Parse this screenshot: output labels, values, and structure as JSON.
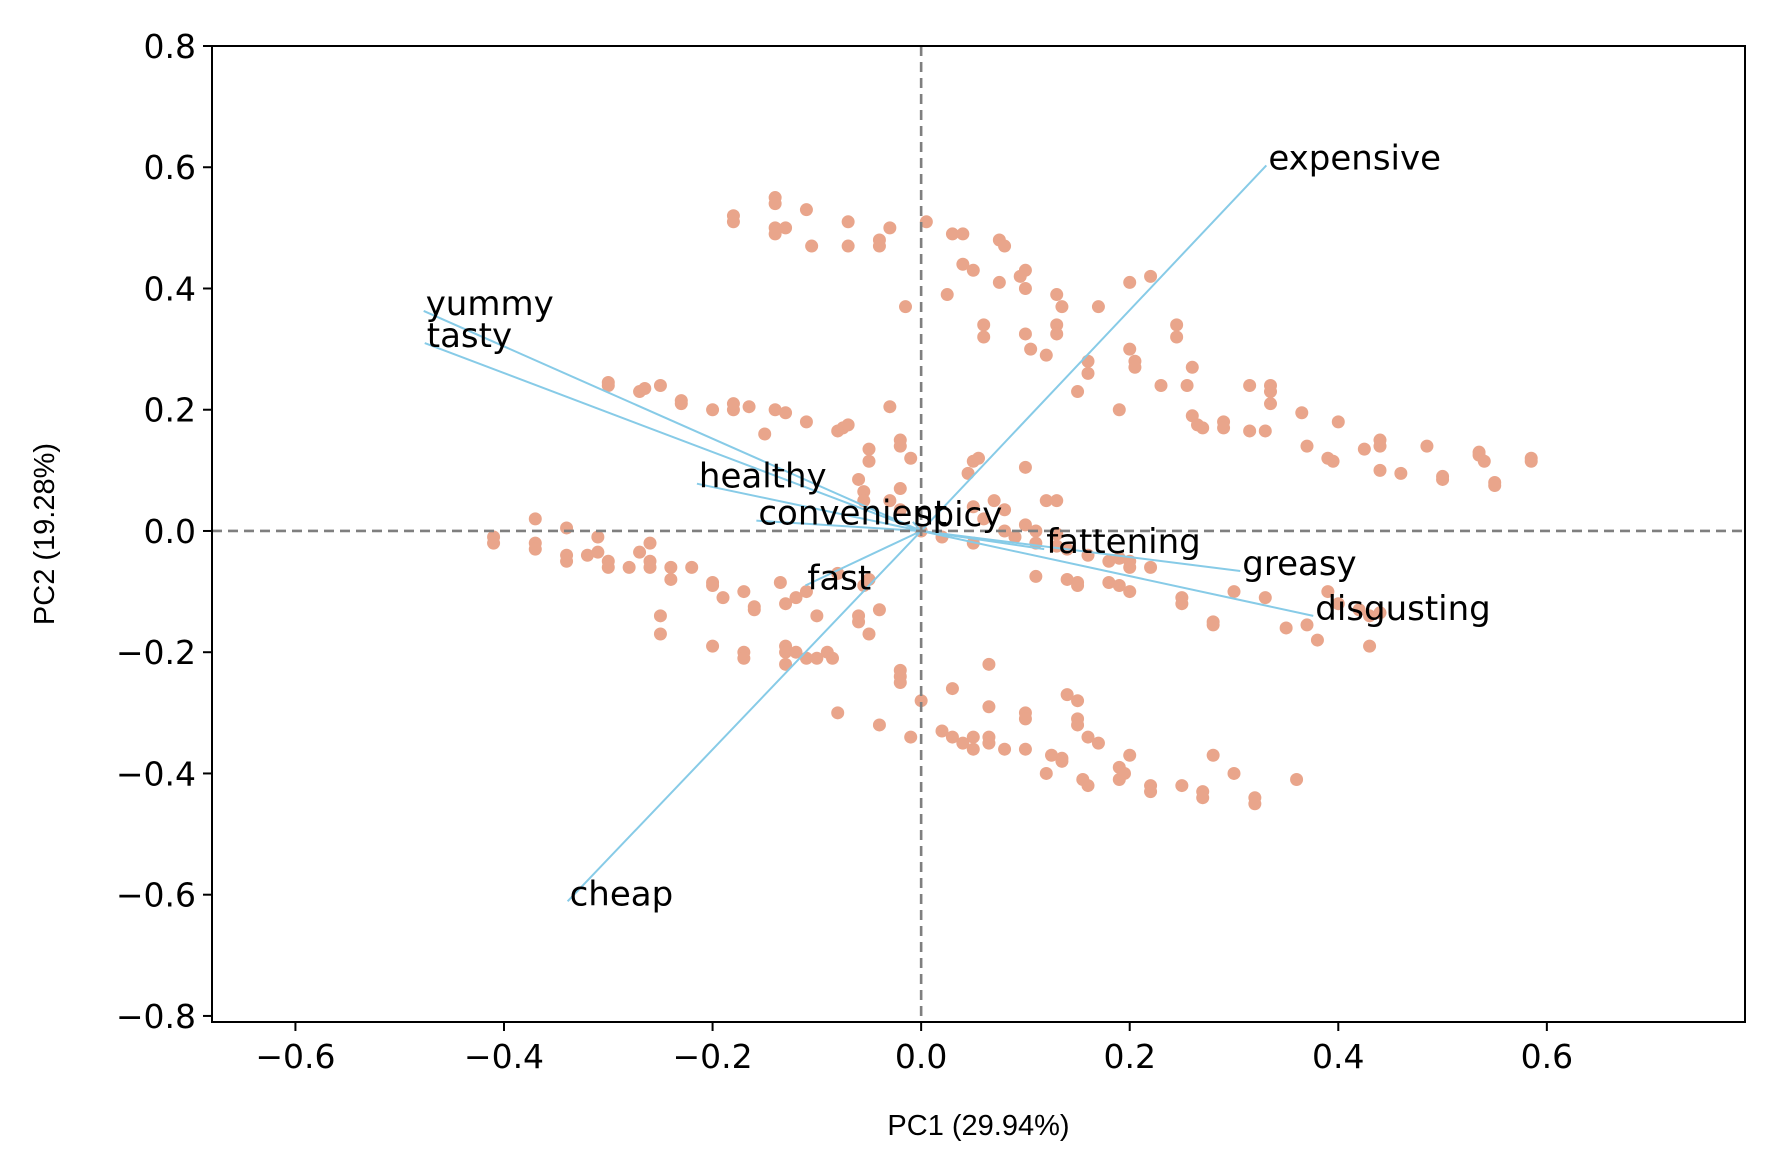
{
  "chart_data": {
    "type": "scatter",
    "title": "",
    "xlabel": "PC1 (29.94%)",
    "ylabel": "PC2 (19.28%)",
    "xlim": [
      -0.68,
      0.79
    ],
    "ylim": [
      -0.81,
      0.8
    ],
    "xticks": [
      -0.6,
      -0.4,
      -0.2,
      0.0,
      0.2,
      0.4,
      0.6
    ],
    "xtick_labels": [
      "−0.6",
      "−0.4",
      "−0.2",
      "0.0",
      "0.2",
      "0.4",
      "0.6"
    ],
    "yticks": [
      0.8,
      0.6,
      0.4,
      0.2,
      0.0,
      -0.2,
      -0.4,
      -0.6,
      -0.8
    ],
    "ytick_labels": [
      "0.8",
      "0.6",
      "0.4",
      "0.2",
      "0.0",
      "−0.2",
      "−0.4",
      "−0.6",
      "−0.8"
    ],
    "grid": false,
    "reference_lines": {
      "x": 0,
      "y": 0,
      "style": "dashed",
      "color": "#7f7f7f"
    },
    "point_color": "#e9a58b",
    "arrow_color": "#87cbe7",
    "loadings": [
      {
        "label": "yummy",
        "x": -0.477,
        "y": 0.363
      },
      {
        "label": "tasty",
        "x": -0.476,
        "y": 0.31
      },
      {
        "label": "healthy",
        "x": -0.215,
        "y": 0.078
      },
      {
        "label": "convenient",
        "x": -0.158,
        "y": 0.017
      },
      {
        "label": "spicy",
        "x": -0.008,
        "y": 0.015
      },
      {
        "label": "fast",
        "x": -0.111,
        "y": -0.09
      },
      {
        "label": "cheap",
        "x": -0.339,
        "y": -0.611
      },
      {
        "label": "expensive",
        "x": 0.331,
        "y": 0.603
      },
      {
        "label": "fattening",
        "x": 0.118,
        "y": -0.03
      },
      {
        "label": "greasy",
        "x": 0.306,
        "y": -0.066
      },
      {
        "label": "disgusting",
        "x": 0.376,
        "y": -0.14
      }
    ],
    "points": [
      [
        -0.18,
        0.51
      ],
      [
        -0.18,
        0.52
      ],
      [
        -0.14,
        0.55
      ],
      [
        -0.14,
        0.54
      ],
      [
        -0.14,
        0.5
      ],
      [
        -0.14,
        0.49
      ],
      [
        -0.13,
        0.5
      ],
      [
        -0.11,
        0.53
      ],
      [
        -0.105,
        0.47
      ],
      [
        -0.07,
        0.51
      ],
      [
        -0.07,
        0.47
      ],
      [
        -0.04,
        0.48
      ],
      [
        -0.04,
        0.47
      ],
      [
        -0.03,
        0.5
      ],
      [
        0.005,
        0.51
      ],
      [
        0.03,
        0.49
      ],
      [
        0.04,
        0.49
      ],
      [
        0.04,
        0.44
      ],
      [
        0.05,
        0.43
      ],
      [
        0.075,
        0.48
      ],
      [
        0.08,
        0.47
      ],
      [
        0.075,
        0.41
      ],
      [
        0.095,
        0.42
      ],
      [
        0.1,
        0.43
      ],
      [
        0.1,
        0.4
      ],
      [
        0.13,
        0.39
      ],
      [
        0.135,
        0.37
      ],
      [
        0.17,
        0.37
      ],
      [
        0.2,
        0.41
      ],
      [
        0.22,
        0.42
      ],
      [
        -0.015,
        0.37
      ],
      [
        0.025,
        0.39
      ],
      [
        0.06,
        0.34
      ],
      [
        0.06,
        0.32
      ],
      [
        0.1,
        0.325
      ],
      [
        0.105,
        0.3
      ],
      [
        0.13,
        0.34
      ],
      [
        0.13,
        0.325
      ],
      [
        0.12,
        0.29
      ],
      [
        0.16,
        0.28
      ],
      [
        0.16,
        0.26
      ],
      [
        0.2,
        0.3
      ],
      [
        0.205,
        0.28
      ],
      [
        0.205,
        0.27
      ],
      [
        0.245,
        0.34
      ],
      [
        0.245,
        0.32
      ],
      [
        0.26,
        0.27
      ],
      [
        0.255,
        0.24
      ],
      [
        0.23,
        0.24
      ],
      [
        0.15,
        0.23
      ],
      [
        0.19,
        0.2
      ],
      [
        0.26,
        0.19
      ],
      [
        0.265,
        0.175
      ],
      [
        0.27,
        0.17
      ],
      [
        0.29,
        0.18
      ],
      [
        0.29,
        0.17
      ],
      [
        0.315,
        0.24
      ],
      [
        0.335,
        0.24
      ],
      [
        0.335,
        0.23
      ],
      [
        0.335,
        0.21
      ],
      [
        0.315,
        0.165
      ],
      [
        0.33,
        0.165
      ],
      [
        0.365,
        0.195
      ],
      [
        0.4,
        0.18
      ],
      [
        0.37,
        0.14
      ],
      [
        0.39,
        0.12
      ],
      [
        0.395,
        0.115
      ],
      [
        0.44,
        0.15
      ],
      [
        0.44,
        0.14
      ],
      [
        0.425,
        0.135
      ],
      [
        0.44,
        0.1
      ],
      [
        0.46,
        0.095
      ],
      [
        0.485,
        0.14
      ],
      [
        0.5,
        0.09
      ],
      [
        0.5,
        0.085
      ],
      [
        0.535,
        0.13
      ],
      [
        0.535,
        0.125
      ],
      [
        0.54,
        0.115
      ],
      [
        0.55,
        0.08
      ],
      [
        0.55,
        0.075
      ],
      [
        0.585,
        0.12
      ],
      [
        0.585,
        0.115
      ],
      [
        -0.3,
        0.24
      ],
      [
        -0.3,
        0.245
      ],
      [
        -0.27,
        0.23
      ],
      [
        -0.265,
        0.235
      ],
      [
        -0.25,
        0.24
      ],
      [
        -0.23,
        0.21
      ],
      [
        -0.23,
        0.215
      ],
      [
        -0.2,
        0.2
      ],
      [
        -0.18,
        0.2
      ],
      [
        -0.18,
        0.21
      ],
      [
        -0.165,
        0.205
      ],
      [
        -0.14,
        0.2
      ],
      [
        -0.13,
        0.195
      ],
      [
        -0.11,
        0.18
      ],
      [
        -0.15,
        0.16
      ],
      [
        -0.08,
        0.165
      ],
      [
        -0.075,
        0.17
      ],
      [
        -0.07,
        0.175
      ],
      [
        -0.03,
        0.205
      ],
      [
        -0.02,
        0.15
      ],
      [
        -0.02,
        0.14
      ],
      [
        -0.05,
        0.135
      ],
      [
        -0.05,
        0.115
      ],
      [
        -0.01,
        0.12
      ],
      [
        -0.06,
        0.085
      ],
      [
        -0.055,
        0.065
      ],
      [
        -0.055,
        0.05
      ],
      [
        -0.03,
        0.05
      ],
      [
        -0.02,
        0.07
      ],
      [
        -0.02,
        0.035
      ],
      [
        0.05,
        0.115
      ],
      [
        0.055,
        0.12
      ],
      [
        0.045,
        0.095
      ],
      [
        0.05,
        0.04
      ],
      [
        0.06,
        0.02
      ],
      [
        0.07,
        0.05
      ],
      [
        0.08,
        0.035
      ],
      [
        0.1,
        0.105
      ],
      [
        0.12,
        0.05
      ],
      [
        0.13,
        0.05
      ],
      [
        0.1,
        0.01
      ],
      [
        0.11,
        0.0
      ],
      [
        0.13,
        -0.005
      ],
      [
        -0.41,
        -0.01
      ],
      [
        -0.41,
        -0.02
      ],
      [
        -0.37,
        0.02
      ],
      [
        -0.37,
        -0.02
      ],
      [
        -0.37,
        -0.03
      ],
      [
        -0.34,
        0.005
      ],
      [
        -0.34,
        -0.04
      ],
      [
        -0.34,
        -0.05
      ],
      [
        -0.32,
        -0.04
      ],
      [
        -0.31,
        -0.035
      ],
      [
        -0.31,
        -0.01
      ],
      [
        -0.3,
        -0.05
      ],
      [
        -0.3,
        -0.06
      ],
      [
        -0.28,
        -0.06
      ],
      [
        -0.27,
        -0.035
      ],
      [
        -0.26,
        -0.05
      ],
      [
        -0.26,
        -0.06
      ],
      [
        -0.26,
        -0.02
      ],
      [
        -0.24,
        -0.06
      ],
      [
        -0.24,
        -0.08
      ],
      [
        -0.22,
        -0.06
      ],
      [
        -0.2,
        -0.085
      ],
      [
        -0.2,
        -0.09
      ],
      [
        -0.19,
        -0.11
      ],
      [
        -0.17,
        -0.1
      ],
      [
        -0.16,
        -0.125
      ],
      [
        -0.16,
        -0.13
      ],
      [
        -0.13,
        -0.12
      ],
      [
        -0.135,
        -0.085
      ],
      [
        -0.12,
        -0.11
      ],
      [
        -0.11,
        -0.1
      ],
      [
        -0.1,
        -0.14
      ],
      [
        -0.06,
        -0.14
      ],
      [
        -0.06,
        -0.15
      ],
      [
        -0.05,
        -0.17
      ],
      [
        -0.04,
        -0.13
      ],
      [
        -0.055,
        -0.09
      ],
      [
        -0.08,
        -0.07
      ],
      [
        -0.05,
        -0.08
      ],
      [
        -0.25,
        -0.14
      ],
      [
        -0.25,
        -0.17
      ],
      [
        -0.2,
        -0.19
      ],
      [
        -0.17,
        -0.2
      ],
      [
        -0.17,
        -0.21
      ],
      [
        -0.13,
        -0.19
      ],
      [
        -0.13,
        -0.2
      ],
      [
        -0.12,
        -0.2
      ],
      [
        -0.13,
        -0.22
      ],
      [
        -0.11,
        -0.21
      ],
      [
        -0.1,
        -0.21
      ],
      [
        -0.09,
        -0.2
      ],
      [
        -0.085,
        -0.21
      ],
      [
        0.0,
        -0.0
      ],
      [
        0.02,
        -0.01
      ],
      [
        0.05,
        -0.02
      ],
      [
        0.08,
        0.0
      ],
      [
        0.09,
        -0.01
      ],
      [
        0.11,
        -0.02
      ],
      [
        0.13,
        -0.025
      ],
      [
        0.14,
        -0.03
      ],
      [
        0.16,
        -0.04
      ],
      [
        0.18,
        -0.05
      ],
      [
        0.19,
        -0.045
      ],
      [
        0.2,
        -0.05
      ],
      [
        0.2,
        -0.06
      ],
      [
        0.22,
        -0.06
      ],
      [
        0.11,
        -0.075
      ],
      [
        0.14,
        -0.08
      ],
      [
        0.15,
        -0.085
      ],
      [
        0.15,
        -0.09
      ],
      [
        0.18,
        -0.085
      ],
      [
        0.19,
        -0.09
      ],
      [
        0.2,
        -0.1
      ],
      [
        0.25,
        -0.11
      ],
      [
        0.25,
        -0.12
      ],
      [
        0.28,
        -0.15
      ],
      [
        0.28,
        -0.155
      ],
      [
        0.3,
        -0.1
      ],
      [
        0.33,
        -0.11
      ],
      [
        0.35,
        -0.16
      ],
      [
        0.37,
        -0.155
      ],
      [
        0.38,
        -0.18
      ],
      [
        0.39,
        -0.1
      ],
      [
        0.4,
        -0.12
      ],
      [
        0.42,
        -0.13
      ],
      [
        0.43,
        -0.14
      ],
      [
        0.44,
        -0.135
      ],
      [
        0.43,
        -0.19
      ],
      [
        -0.02,
        -0.23
      ],
      [
        -0.02,
        -0.24
      ],
      [
        -0.02,
        -0.25
      ],
      [
        0.0,
        -0.28
      ],
      [
        0.03,
        -0.26
      ],
      [
        0.065,
        -0.22
      ],
      [
        0.065,
        -0.29
      ],
      [
        0.1,
        -0.3
      ],
      [
        0.1,
        -0.31
      ],
      [
        0.14,
        -0.27
      ],
      [
        0.15,
        -0.28
      ],
      [
        0.15,
        -0.31
      ],
      [
        0.15,
        -0.32
      ],
      [
        -0.08,
        -0.3
      ],
      [
        -0.04,
        -0.32
      ],
      [
        -0.01,
        -0.34
      ],
      [
        0.02,
        -0.33
      ],
      [
        0.03,
        -0.34
      ],
      [
        0.04,
        -0.35
      ],
      [
        0.05,
        -0.36
      ],
      [
        0.05,
        -0.34
      ],
      [
        0.065,
        -0.34
      ],
      [
        0.065,
        -0.35
      ],
      [
        0.08,
        -0.36
      ],
      [
        0.1,
        -0.36
      ],
      [
        0.16,
        -0.34
      ],
      [
        0.17,
        -0.35
      ],
      [
        0.125,
        -0.37
      ],
      [
        0.135,
        -0.375
      ],
      [
        0.135,
        -0.38
      ],
      [
        0.12,
        -0.4
      ],
      [
        0.155,
        -0.41
      ],
      [
        0.16,
        -0.42
      ],
      [
        0.2,
        -0.37
      ],
      [
        0.19,
        -0.39
      ],
      [
        0.19,
        -0.41
      ],
      [
        0.195,
        -0.4
      ],
      [
        0.22,
        -0.42
      ],
      [
        0.22,
        -0.43
      ],
      [
        0.25,
        -0.42
      ],
      [
        0.28,
        -0.37
      ],
      [
        0.27,
        -0.43
      ],
      [
        0.27,
        -0.44
      ],
      [
        0.3,
        -0.4
      ],
      [
        0.32,
        -0.44
      ],
      [
        0.32,
        -0.45
      ],
      [
        0.36,
        -0.41
      ]
    ]
  }
}
